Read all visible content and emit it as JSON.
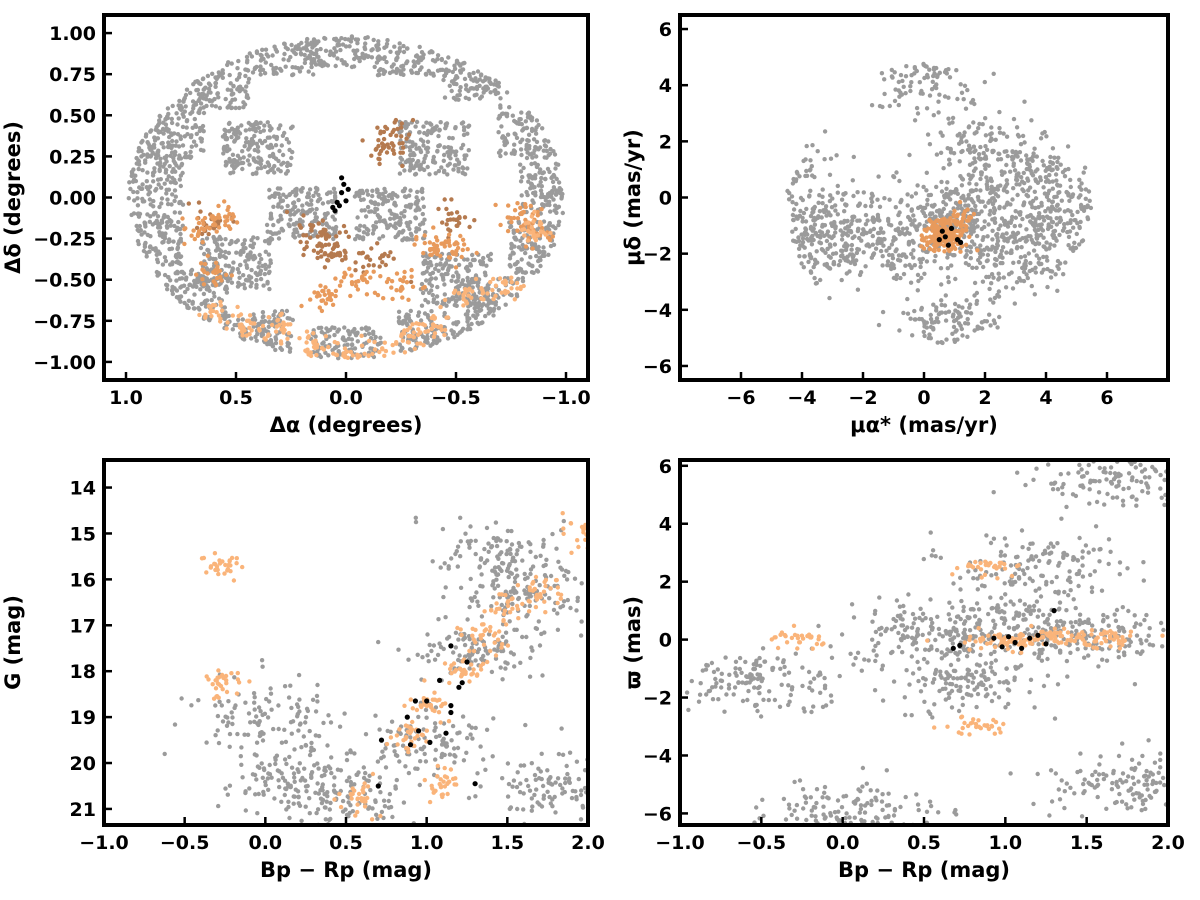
{
  "colors": {
    "field": "#9b9b9b",
    "members_dark": "#b57a4f",
    "members_mid": "#e89a5c",
    "members_light": "#fab47a",
    "core": "#000000"
  },
  "chart_data": [
    {
      "id": "sky",
      "type": "scatter",
      "xlabel": "Δα (degrees)",
      "ylabel": "Δδ (degrees)",
      "xlim": [
        1.1,
        -1.1
      ],
      "ylim": [
        -1.11,
        1.11
      ],
      "xticks": [
        1.0,
        0.5,
        0.0,
        -0.5,
        -1.0
      ],
      "xtick_labels": [
        "1.0",
        "0.5",
        "0.0",
        "−0.5",
        "−1.0"
      ],
      "yticks": [
        1.0,
        0.75,
        0.5,
        0.25,
        0.0,
        -0.25,
        -0.5,
        -0.75,
        -1.0
      ],
      "ytick_labels": [
        "1.00",
        "0.75",
        "0.50",
        "0.25",
        "0.00",
        "−0.25",
        "−0.50",
        "−0.75",
        "−1.00"
      ],
      "grid": false,
      "series": [
        {
          "color_key": "field",
          "points": [
            [
              0.9,
              0.1
            ],
            [
              0.8,
              0.4
            ],
            [
              0.6,
              0.7
            ],
            [
              0.3,
              0.9
            ],
            [
              0.0,
              0.95
            ],
            [
              -0.3,
              0.9
            ],
            [
              -0.6,
              0.75
            ],
            [
              -0.85,
              0.4
            ],
            [
              -0.95,
              0.05
            ],
            [
              -0.9,
              -0.3
            ],
            [
              -0.7,
              -0.65
            ],
            [
              -0.4,
              -0.85
            ],
            [
              0.0,
              -0.95
            ],
            [
              0.4,
              -0.85
            ],
            [
              0.7,
              -0.6
            ],
            [
              0.9,
              -0.25
            ],
            [
              0.4,
              0.3
            ],
            [
              -0.4,
              0.3
            ],
            [
              0.2,
              -0.1
            ],
            [
              -0.2,
              -0.1
            ],
            [
              0.5,
              -0.4
            ],
            [
              -0.5,
              -0.5
            ]
          ]
        },
        {
          "color_key": "members_dark",
          "points": [
            [
              0.6,
              -0.15
            ],
            [
              0.12,
              -0.2
            ],
            [
              0.1,
              -0.3
            ],
            [
              0.05,
              -0.35
            ],
            [
              -0.18,
              0.3
            ],
            [
              -0.22,
              0.38
            ],
            [
              -0.13,
              -0.38
            ],
            [
              -0.48,
              -0.13
            ]
          ]
        },
        {
          "color_key": "members_mid",
          "points": [
            [
              0.55,
              -0.12
            ],
            [
              0.65,
              -0.2
            ],
            [
              0.62,
              -0.45
            ],
            [
              -0.05,
              -0.5
            ],
            [
              -0.25,
              -0.55
            ],
            [
              -0.4,
              -0.3
            ],
            [
              -0.5,
              -0.3
            ],
            [
              -0.8,
              -0.1
            ],
            [
              -0.85,
              -0.2
            ],
            [
              0.1,
              -0.6
            ]
          ]
        },
        {
          "color_key": "members_light",
          "points": [
            [
              0.6,
              -0.7
            ],
            [
              0.45,
              -0.78
            ],
            [
              0.3,
              -0.8
            ],
            [
              0.15,
              -0.9
            ],
            [
              0.0,
              -0.97
            ],
            [
              -0.15,
              -0.95
            ],
            [
              -0.3,
              -0.85
            ],
            [
              -0.4,
              -0.8
            ],
            [
              -0.55,
              -0.6
            ],
            [
              -0.7,
              -0.55
            ],
            [
              -0.85,
              -0.2
            ]
          ]
        },
        {
          "color_key": "core",
          "points": [
            [
              0.02,
              0.12
            ],
            [
              0.01,
              0.08
            ],
            [
              0.02,
              0.03
            ],
            [
              0.0,
              -0.02
            ],
            [
              -0.01,
              0.05
            ],
            [
              0.03,
              -0.05
            ],
            [
              0.05,
              -0.08
            ],
            [
              0.04,
              -0.03
            ],
            [
              0.06,
              -0.06
            ]
          ]
        }
      ]
    },
    {
      "id": "pm",
      "type": "scatter",
      "xlabel": "μα* (mas/yr)",
      "ylabel": "μδ (mas/yr)",
      "xlim": [
        -8,
        8
      ],
      "ylim": [
        -6.5,
        6.5
      ],
      "xticks": [
        -6,
        -4,
        -2,
        0,
        2,
        4,
        6
      ],
      "xtick_labels": [
        "−6",
        "−4",
        "−2",
        "0",
        "2",
        "4",
        "6"
      ],
      "yticks": [
        6,
        4,
        2,
        0,
        -2,
        -4,
        -6
      ],
      "ytick_labels": [
        "6",
        "4",
        "2",
        "0",
        "−2",
        "−4",
        "−6"
      ],
      "grid": false,
      "series": [
        {
          "color_key": "field",
          "points": [
            [
              0.5,
              -1.2
            ],
            [
              1.5,
              -0.5
            ],
            [
              -1.5,
              -1.5
            ],
            [
              3,
              -2
            ],
            [
              -3,
              -1
            ],
            [
              2,
              1.5
            ],
            [
              4,
              0.5
            ],
            [
              -4,
              -2
            ],
            [
              0,
              4.5
            ],
            [
              1,
              -4.5
            ],
            [
              4.5,
              -1
            ],
            [
              -4.8,
              0.7
            ]
          ]
        },
        {
          "color_key": "members_mid",
          "points": [
            [
              0.5,
              -1.0
            ],
            [
              1.0,
              -1.5
            ],
            [
              0.3,
              -1.6
            ],
            [
              1.2,
              -0.8
            ],
            [
              0.7,
              -1.3
            ]
          ]
        },
        {
          "color_key": "core",
          "points": [
            [
              0.6,
              -1.2
            ],
            [
              0.9,
              -1.1
            ],
            [
              1.1,
              -1.5
            ],
            [
              0.8,
              -1.7
            ],
            [
              0.7,
              -1.4
            ],
            [
              1.2,
              -1.6
            ],
            [
              0.5,
              -1.5
            ]
          ]
        }
      ]
    },
    {
      "id": "cmd",
      "type": "scatter",
      "xlabel": "Bp − Rp (mag)",
      "ylabel": "G (mag)",
      "xlim": [
        -1.0,
        2.0
      ],
      "ylim": [
        21.35,
        13.4
      ],
      "xticks": [
        -1.0,
        -0.5,
        0.0,
        0.5,
        1.0,
        1.5,
        2.0
      ],
      "xtick_labels": [
        "−1.0",
        "−0.5",
        "0.0",
        "0.5",
        "1.0",
        "1.5",
        "2.0"
      ],
      "yticks": [
        21,
        20,
        19,
        18,
        17,
        16,
        15,
        14
      ],
      "ytick_labels": [
        "21",
        "20",
        "19",
        "18",
        "17",
        "16",
        "15",
        "14"
      ],
      "grid": false,
      "series": [
        {
          "color_key": "field",
          "points": [
            [
              0.5,
              20.8
            ],
            [
              1.0,
              19.5
            ],
            [
              1.3,
              17.5
            ],
            [
              1.6,
              16.3
            ],
            [
              1.8,
              20.5
            ],
            [
              0.2,
              20.3
            ],
            [
              0.0,
              19.0
            ],
            [
              1.5,
              15.5
            ]
          ]
        },
        {
          "color_key": "members_light",
          "points": [
            [
              0.9,
              19.4
            ],
            [
              1.0,
              18.8
            ],
            [
              1.2,
              18.0
            ],
            [
              1.35,
              17.2
            ],
            [
              1.5,
              16.6
            ],
            [
              1.7,
              16.2
            ],
            [
              0.6,
              20.8
            ],
            [
              1.1,
              20.5
            ],
            [
              -0.28,
              18.3
            ],
            [
              -0.28,
              15.7
            ],
            [
              2.0,
              15.0
            ]
          ]
        },
        {
          "color_key": "core",
          "points": [
            [
              0.7,
              20.5
            ],
            [
              1.3,
              20.45
            ],
            [
              0.72,
              19.5
            ],
            [
              0.9,
              19.6
            ],
            [
              1.02,
              19.55
            ],
            [
              0.95,
              19.3
            ],
            [
              1.12,
              19.35
            ],
            [
              0.88,
              19.0
            ],
            [
              1.15,
              18.9
            ],
            [
              1.0,
              18.65
            ],
            [
              1.15,
              18.75
            ],
            [
              0.93,
              18.65
            ],
            [
              1.2,
              18.35
            ],
            [
              1.08,
              18.2
            ],
            [
              1.22,
              18.25
            ],
            [
              1.25,
              17.8
            ],
            [
              1.15,
              17.45
            ]
          ]
        }
      ]
    },
    {
      "id": "parallax",
      "type": "scatter",
      "xlabel": "Bp − Rp (mag)",
      "ylabel": "ϖ (mas)",
      "xlim": [
        -1.0,
        2.0
      ],
      "ylim": [
        -6.4,
        6.2
      ],
      "xticks": [
        -1.0,
        -0.5,
        0.0,
        0.5,
        1.0,
        1.5,
        2.0
      ],
      "xtick_labels": [
        "−1.0",
        "−0.5",
        "0.0",
        "0.5",
        "1.0",
        "1.5",
        "2.0"
      ],
      "yticks": [
        6,
        4,
        2,
        0,
        -2,
        -4,
        -6
      ],
      "ytick_labels": [
        "6",
        "4",
        "2",
        "0",
        "−2",
        "−4",
        "−6"
      ],
      "grid": false,
      "series": [
        {
          "color_key": "field",
          "points": [
            [
              0.5,
              0.2
            ],
            [
              1.0,
              0.5
            ],
            [
              1.5,
              0.3
            ],
            [
              0.8,
              -1.5
            ],
            [
              1.2,
              2.5
            ],
            [
              1.7,
              5.6
            ],
            [
              0.0,
              -5.9
            ],
            [
              1.75,
              -5.0
            ],
            [
              -0.53,
              -1.5
            ]
          ]
        },
        {
          "color_key": "members_light",
          "points": [
            [
              0.9,
              0.0
            ],
            [
              1.1,
              -0.1
            ],
            [
              1.3,
              0.1
            ],
            [
              1.5,
              0.0
            ],
            [
              1.7,
              0.0
            ],
            [
              -0.28,
              0.0
            ],
            [
              0.8,
              -3.0
            ],
            [
              0.9,
              2.5
            ]
          ]
        },
        {
          "color_key": "core",
          "points": [
            [
              0.72,
              -0.2
            ],
            [
              0.68,
              -0.3
            ],
            [
              0.93,
              0.05
            ],
            [
              0.98,
              -0.25
            ],
            [
              1.02,
              0.1
            ],
            [
              1.06,
              -0.1
            ],
            [
              1.1,
              -0.3
            ],
            [
              1.15,
              0.05
            ],
            [
              1.2,
              0.15
            ],
            [
              1.25,
              -0.15
            ],
            [
              1.3,
              1.0
            ]
          ]
        }
      ]
    }
  ]
}
